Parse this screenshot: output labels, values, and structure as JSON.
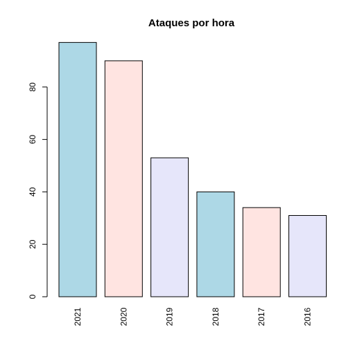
{
  "chart_data": {
    "type": "bar",
    "title": "Ataques por hora",
    "xlabel": "",
    "ylabel": "",
    "categories": [
      "2021",
      "2020",
      "2019",
      "2018",
      "2017",
      "2016"
    ],
    "values": [
      97,
      90,
      53,
      40,
      34,
      31
    ],
    "colors": [
      "#add8e6",
      "#ffe4e1",
      "#e6e6fa",
      "#add8e6",
      "#ffe4e1",
      "#e6e6fa"
    ],
    "ylim": [
      0,
      100
    ],
    "yticks": [
      0,
      20,
      40,
      60,
      80
    ],
    "grid": false,
    "x_tick_orientation": "vertical"
  }
}
